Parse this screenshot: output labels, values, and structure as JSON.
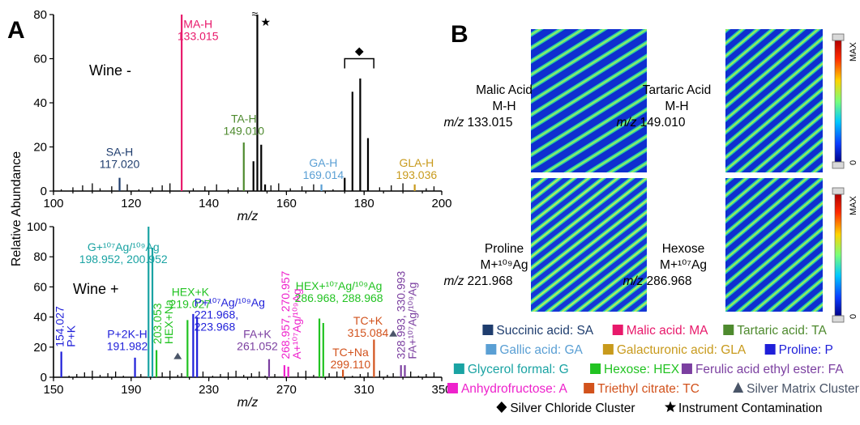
{
  "panels": {
    "a_letter": "A",
    "b_letter": "B"
  },
  "y_axis_title": "Relative Abundance",
  "chart_data": [
    {
      "type": "bar",
      "title": "Wine -",
      "xlabel": "m/z",
      "ylabel": "Relative Abundance",
      "xlim": [
        100,
        200
      ],
      "ylim": [
        0,
        80
      ],
      "x_ticks": [
        "100",
        "120",
        "140",
        "160",
        "180",
        "200"
      ],
      "y_ticks": [
        "0",
        "20",
        "40",
        "60",
        "80"
      ],
      "peaks": [
        {
          "x": 117.02,
          "y": 6,
          "color": "#1f3d6e"
        },
        {
          "x": 133.015,
          "y": 80,
          "color": "#e8196b"
        },
        {
          "x": 149.01,
          "y": 22,
          "color": "#4e8a2e"
        },
        {
          "x": 151.5,
          "y": 13.5,
          "color": "#000000"
        },
        {
          "x": 152.5,
          "y": 80,
          "color": "#000000"
        },
        {
          "x": 153.5,
          "y": 21,
          "color": "#000000"
        },
        {
          "x": 154.5,
          "y": 3,
          "color": "#000000"
        },
        {
          "x": 169.014,
          "y": 3,
          "color": "#5a9fd4"
        },
        {
          "x": 175,
          "y": 6,
          "color": "#000000"
        },
        {
          "x": 177,
          "y": 45,
          "color": "#000000"
        },
        {
          "x": 179,
          "y": 51,
          "color": "#000000"
        },
        {
          "x": 181,
          "y": 24,
          "color": "#000000"
        },
        {
          "x": 193.036,
          "y": 3,
          "color": "#c89a1c"
        }
      ],
      "noise": [
        102,
        105,
        107.5,
        110,
        112,
        115,
        119,
        122,
        125.5,
        128,
        130,
        136,
        139,
        142,
        145,
        147.5,
        156,
        158,
        161,
        164,
        167,
        172,
        184,
        187,
        190,
        196,
        198
      ],
      "labels": [
        {
          "name": "SA-H",
          "mz": "117.020",
          "x": 117.02,
          "y": 16,
          "color": "#1f3d6e"
        },
        {
          "name": "MA-H",
          "mz": "133.015",
          "x": 137.2,
          "y": 74,
          "color": "#e8196b"
        },
        {
          "name": "TA-H",
          "mz": "149.010",
          "x": 149.01,
          "y": 31,
          "color": "#4e8a2e"
        },
        {
          "name": "GA-H",
          "mz": "169.014",
          "x": 169.5,
          "y": 11,
          "color": "#5a9fd4"
        },
        {
          "name": "GLA-H",
          "mz": "193.036",
          "x": 193.5,
          "y": 11,
          "color": "#c89a1c"
        }
      ],
      "symbols": {
        "star": "★",
        "diamond": "◆",
        "break": "≈"
      }
    },
    {
      "type": "bar",
      "title": "Wine +",
      "xlabel": "m/z",
      "xlim": [
        150,
        350
      ],
      "ylim": [
        0,
        100
      ],
      "x_ticks": [
        "150",
        "190",
        "230",
        "270",
        "310",
        "350"
      ],
      "y_ticks": [
        "0",
        "20",
        "40",
        "60",
        "80",
        "100"
      ],
      "peaks": [
        {
          "x": 154.027,
          "y": 17,
          "color": "#1f1fd9"
        },
        {
          "x": 191.982,
          "y": 13,
          "color": "#1f1fd9"
        },
        {
          "x": 198.952,
          "y": 100,
          "color": "#1aa3a3"
        },
        {
          "x": 200.952,
          "y": 86,
          "color": "#1aa3a3"
        },
        {
          "x": 203.053,
          "y": 18,
          "color": "#22c322"
        },
        {
          "x": 219.027,
          "y": 38,
          "color": "#22c322"
        },
        {
          "x": 221.968,
          "y": 42,
          "color": "#1f1fd9"
        },
        {
          "x": 223.968,
          "y": 40,
          "color": "#1f1fd9"
        },
        {
          "x": 261.052,
          "y": 12,
          "color": "#7b3fa0"
        },
        {
          "x": 268.957,
          "y": 8,
          "color": "#ee22cc"
        },
        {
          "x": 270.957,
          "y": 7,
          "color": "#ee22cc"
        },
        {
          "x": 286.968,
          "y": 39,
          "color": "#22c322"
        },
        {
          "x": 288.968,
          "y": 36,
          "color": "#22c322"
        },
        {
          "x": 299.11,
          "y": 5,
          "color": "#d2521c"
        },
        {
          "x": 315.084,
          "y": 25,
          "color": "#d2521c"
        },
        {
          "x": 328.993,
          "y": 8,
          "color": "#7b3fa0"
        },
        {
          "x": 330.993,
          "y": 8,
          "color": "#7b3fa0"
        }
      ],
      "noise": [
        158,
        162,
        166,
        170,
        174,
        178,
        182,
        186,
        195,
        206,
        210,
        214,
        216,
        227,
        232,
        236,
        240,
        244,
        248,
        252,
        256,
        259,
        264,
        276,
        280,
        284,
        292,
        296,
        304,
        308,
        312,
        318,
        322,
        325,
        334,
        338,
        342,
        346
      ],
      "labels": [
        {
          "name": "P+K",
          "mz": "154.027",
          "x": 155.3,
          "y": 20,
          "color": "#1f1fd9",
          "rot": true
        },
        {
          "name": "P+2K-H",
          "mz": "191.982",
          "x": 188,
          "y": 26,
          "color": "#1f1fd9"
        },
        {
          "name": "G+¹⁰⁷Ag/¹⁰⁹Ag",
          "mz": "198.952, 200.952",
          "x": 186,
          "y": 84,
          "color": "#1aa3a3"
        },
        {
          "name": "HEX+Na",
          "mz": "203.053",
          "x": 205.5,
          "y": 22,
          "color": "#22c322",
          "rot": true
        },
        {
          "name": "HEX+K",
          "mz": "219.027",
          "x": 220.5,
          "y": 54,
          "color": "#22c322"
        },
        {
          "name": "P+¹⁰⁷Ag/¹⁰⁹Ag",
          "mz": "221.968,",
          "mz2": "223.968",
          "x": 222.5,
          "y": 47,
          "color": "#1f1fd9",
          "align": "start"
        },
        {
          "name": "FA+K",
          "mz": "261.052",
          "x": 255,
          "y": 26,
          "color": "#7b3fa0"
        },
        {
          "name": "A+¹⁰⁷Ag/¹⁰⁹Ag",
          "mz": "268.957, 270.957",
          "x": 271.5,
          "y": 12,
          "color": "#ee22cc",
          "rot": true,
          "two": true
        },
        {
          "name": "HEX+¹⁰⁷Ag/¹⁰⁹Ag",
          "mz": "286.968, 288.968",
          "x": 297,
          "y": 58,
          "color": "#22c322"
        },
        {
          "name": "TC+K",
          "mz": "315.084",
          "x": 312,
          "y": 35,
          "color": "#d2521c"
        },
        {
          "name": "TC+Na",
          "mz": "299.110",
          "x": 303,
          "y": 14,
          "color": "#d2521c"
        },
        {
          "name": "FA+¹⁰⁷Ag/¹⁰⁹Ag",
          "mz": "328.993, 330.993",
          "x": 331,
          "y": 12,
          "color": "#7b3fa0",
          "rot": true,
          "two": true
        }
      ],
      "triangles": [
        {
          "x": 214,
          "y": 12
        },
        {
          "x": 325,
          "y": 27
        }
      ],
      "symbols": {
        "triangle": "▲"
      }
    }
  ],
  "images": [
    {
      "name": "Malic Acid",
      "ion": "M-H",
      "mz_prefix": "m/z",
      "mz": "133.015"
    },
    {
      "name": "Tartaric Acid",
      "ion": "M-H",
      "mz_prefix": "m/z",
      "mz": "149.010"
    },
    {
      "name": "Proline",
      "ion": "M+¹⁰⁹Ag",
      "mz_prefix": "m/z",
      "mz": "221.968"
    },
    {
      "name": "Hexose",
      "ion": "M+¹⁰⁷Ag",
      "mz_prefix": "m/z",
      "mz": "286.968"
    }
  ],
  "colorbar": {
    "max": "MAX",
    "min": "0"
  },
  "legend": [
    [
      {
        "swatch": "square",
        "color": "#1f3d6e",
        "text": "Succinic acid: SA"
      },
      {
        "swatch": "square",
        "color": "#e8196b",
        "text": "Malic acid: MA"
      },
      {
        "swatch": "square",
        "color": "#4e8a2e",
        "text": "Tartaric acid: TA"
      }
    ],
    [
      {
        "swatch": "square",
        "color": "#5a9fd4",
        "text": "Gallic acid: GA"
      },
      {
        "swatch": "square",
        "color": "#c89a1c",
        "text": "Galacturonic acid: GLA"
      },
      {
        "swatch": "square",
        "color": "#1f1fd9",
        "text": "Proline: P"
      }
    ],
    [
      {
        "swatch": "square",
        "color": "#1aa3a3",
        "text": "Glycerol formal: G"
      },
      {
        "swatch": "square",
        "color": "#22c322",
        "text": "Hexose: HEX"
      },
      {
        "swatch": "square",
        "color": "#7b3fa0",
        "text": "Ferulic acid ethyl ester: FA"
      }
    ],
    [
      {
        "swatch": "square",
        "color": "#ee22cc",
        "text": "Anhydrofructose: A"
      },
      {
        "swatch": "square",
        "color": "#d2521c",
        "text": "Triethyl citrate: TC"
      },
      {
        "swatch": "triangle",
        "color": "#4a5568",
        "text": "Silver Matrix Cluster"
      }
    ],
    [
      {
        "swatch": "diamond",
        "color": "#000000",
        "text": "Silver Chloride Cluster"
      },
      {
        "swatch": "star",
        "color": "#000000",
        "text": "Instrument Contamination"
      }
    ]
  ]
}
